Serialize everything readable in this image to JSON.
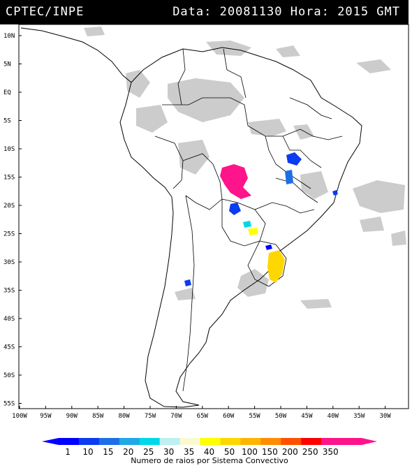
{
  "header": {
    "source": "CPTEC/INPE",
    "datetime": "Data: 20081130 Hora: 2015 GMT"
  },
  "map": {
    "lat_labels": [
      "10N",
      "5N",
      "EQ",
      "5S",
      "10S",
      "15S",
      "20S",
      "25S",
      "30S",
      "35S",
      "40S",
      "45S",
      "50S",
      "55S"
    ],
    "lon_labels": [
      "100W",
      "95W",
      "90W",
      "85W",
      "80W",
      "75W",
      "70W",
      "65W",
      "60W",
      "55W",
      "50W",
      "45W",
      "40W",
      "35W",
      "30W"
    ]
  },
  "legend": {
    "title": "Numero de raios por Sistema Convectivo",
    "levels": [
      "1",
      "10",
      "15",
      "20",
      "25",
      "30",
      "35",
      "40",
      "50",
      "100",
      "150",
      "200",
      "250",
      "350"
    ],
    "colors": [
      "#0000ff",
      "#0a3cf0",
      "#1e6fe6",
      "#1ea8e6",
      "#00d8e8",
      "#bef0f0",
      "#fafad2",
      "#ffff00",
      "#ffd700",
      "#ffb400",
      "#ff8c00",
      "#ff5000",
      "#ff0000",
      "#ff148c",
      "#ff148c"
    ]
  }
}
